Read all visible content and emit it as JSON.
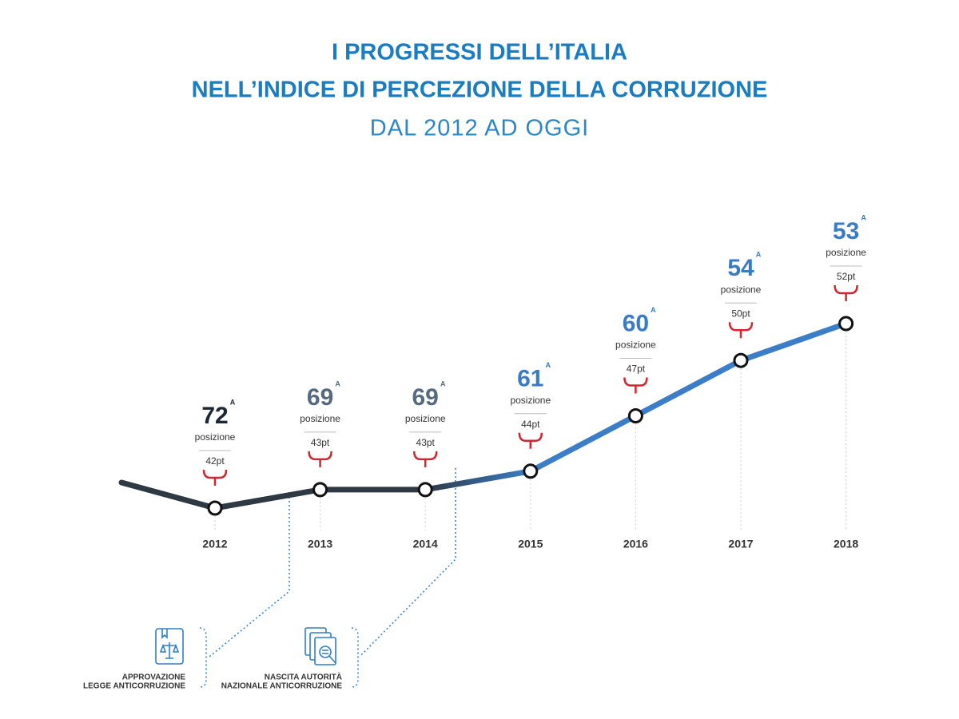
{
  "title": [
    "I PROGRESSI DELL’ITALIA",
    "NELL’INDICE DI PERCEZIONE DELLA CORRUZIONE"
  ],
  "subtitle": "DAL 2012 AD OGGI",
  "chart_data": {
    "type": "line",
    "categories": [
      "2012",
      "2013",
      "2014",
      "2015",
      "2016",
      "2017",
      "2018"
    ],
    "values": [
      42,
      43,
      43,
      44,
      47,
      50,
      52
    ],
    "value_labels": [
      "42pt",
      "43pt",
      "43pt",
      "44pt",
      "47pt",
      "50pt",
      "52pt"
    ],
    "ranks": [
      72,
      69,
      69,
      61,
      60,
      54,
      53
    ],
    "rank_suffix": "A",
    "rank_label": "posizione",
    "rank_colors": [
      "#1c2733",
      "#56697d",
      "#56697d",
      "#3a7cc4",
      "#3a7cc4",
      "#3a7cc4",
      "#3a7cc4"
    ],
    "line_colors": [
      "#2e3944",
      "#3b7dc6"
    ],
    "bracket_color": "#d0262e",
    "annotations": [
      {
        "text": [
          "APPROVAZIONE",
          "LEGGE ANTICORRUZIONE"
        ]
      },
      {
        "text": [
          "NASCITA AUTORITÀ",
          "NAZIONALE ANTICORRUZIONE"
        ]
      }
    ]
  }
}
